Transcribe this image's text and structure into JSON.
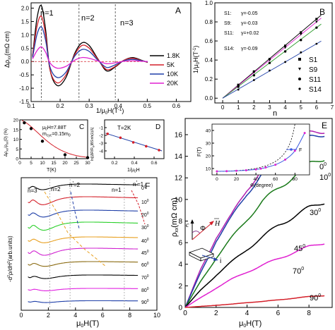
{
  "panels": {
    "A": {
      "letter": "A",
      "ylabel": "Δρ",
      "ylabel_sub": "xx",
      "ylabel_unit": "(mΩ cm)",
      "xlabel": "1/μ",
      "xlabel_sub": "0",
      "xlabel_unit": "H(T",
      "xlabel_sup": "-1",
      "xlabel_end": ")",
      "ranges": {
        "x": [
          0.1,
          0.65
        ],
        "y": [
          -1.5,
          2.2
        ]
      },
      "xticks": [
        "0.1",
        "0.2",
        "0.3",
        "0.4",
        "0.5",
        "0.6"
      ],
      "yticks": [
        "-1.5",
        "-1.0",
        "-0.5",
        "0.0",
        "0.5",
        "1.0",
        "1.5",
        "2.0"
      ],
      "region_labels": [
        "n=1",
        "n=2",
        "n=3"
      ],
      "dividers": [
        0.135,
        0.265,
        0.39
      ],
      "legend": [
        {
          "name": "1.8K",
          "color": "#000000"
        },
        {
          "name": "5K",
          "color": "#d4202a"
        },
        {
          "name": "10K",
          "color": "#1f3fa8"
        },
        {
          "name": "20K",
          "color": "#e020d0"
        }
      ]
    },
    "B": {
      "letter": "B",
      "ylabel": "1/μ",
      "ylabel_sub": "0",
      "ylabel_unit": "H(T",
      "ylabel_sup": "-1",
      "ylabel_end": ")",
      "xlabel": "n",
      "ranges": {
        "x": [
          -0.5,
          7
        ],
        "y": [
          -0.05,
          1.0
        ]
      },
      "xticks": [
        "0",
        "1",
        "2",
        "3",
        "4",
        "5",
        "6",
        "7"
      ],
      "yticks": [
        "0.0",
        "0.2",
        "0.4",
        "0.6",
        "0.8",
        "1.0"
      ],
      "gamma_lines": [
        {
          "sample": "S1:",
          "text": "γ=-0.05",
          "color": "#1f3fa8"
        },
        {
          "sample": "S9:",
          "text": "γ=-0.03",
          "color": "#e020d0"
        },
        {
          "sample": "S11:",
          "text": "γ=+0.02",
          "color": "#2a9a2a"
        },
        {
          "sample": "S14:",
          "text": "γ=-0.09",
          "color": "#1f3fa8"
        }
      ],
      "legend": [
        "S1",
        "S9",
        "S11",
        "S14"
      ]
    },
    "C": {
      "letter": "C",
      "ylabel": "Δρ",
      "ylabel_sub": "xx",
      "ylabel_mid": "/ρ",
      "ylabel_sub2": "xx",
      "ylabel_end": "(0) (%)",
      "xlabel": "T(K)",
      "ranges": {
        "x": [
          0,
          30
        ],
        "y": [
          0,
          20
        ]
      },
      "xticks": [
        "0",
        "5",
        "10",
        "15",
        "20",
        "25",
        "30"
      ],
      "yticks": [
        "0",
        "5",
        "10",
        "15",
        "20"
      ],
      "annotation1": "μ",
      "annotation1_sub": "0",
      "annotation1_end": "H=7.88T",
      "annotation2": "m",
      "annotation2_sub": "cyc",
      "annotation2_end": "=0.15m",
      "annotation2_sub2": "0"
    },
    "D": {
      "letter": "D",
      "annotation": "T=2K",
      "ylabel": "ln[(ΔR/R",
      "ylabel_sub": "0",
      "ylabel_end": ")BSinh(λ)/λ]",
      "xlabel": "1/μ",
      "xlabel_sub": "0",
      "xlabel_end": "H",
      "ranges": {
        "x": [
          0.1,
          0.7
        ],
        "y": [
          -5,
          0
        ]
      },
      "xticks": [
        "0.2",
        "0.4",
        "0.6"
      ],
      "yticks": [
        "-1",
        "-2",
        "-3",
        "-4"
      ]
    },
    "E": {
      "letter": "E",
      "ylabel": "ρ",
      "ylabel_sub": "xx",
      "ylabel_end": "(mΩ cm)",
      "xlabel": "μ",
      "xlabel_sub": "0",
      "xlabel_end": "H(T)",
      "ranges": {
        "x": [
          0,
          9.5
        ],
        "y": [
          0,
          17.5
        ]
      },
      "xticks": [
        "0",
        "2",
        "4",
        "6",
        "8"
      ],
      "yticks": [
        "0",
        "2",
        "4",
        "6",
        "8",
        "10",
        "12",
        "14",
        "16"
      ],
      "angle_labels": [
        {
          "text": "0",
          "sup": "0",
          "color": "#b020b0"
        },
        {
          "text": "10",
          "sup": "0",
          "color": "#1f3fa8"
        },
        {
          "text": "30",
          "sup": "0",
          "color": "#1a7a1a"
        },
        {
          "text": "45",
          "sup": "0",
          "color": "#000000"
        },
        {
          "text": "70",
          "sup": "0",
          "color": "#e020d0"
        },
        {
          "text": "90",
          "sup": "0",
          "color": "#d4202a"
        }
      ],
      "inset": {
        "ylabel": "F(T)",
        "xlabel": "Φ(degree)",
        "xticks": [
          "0",
          "20",
          "40",
          "60",
          "80"
        ],
        "yticks": [
          "10",
          "20",
          "30",
          "40"
        ],
        "legend": "F"
      },
      "schematic": {
        "c": "c",
        "phi": "Φ",
        "h": "H",
        "i": "i"
      }
    },
    "F": {
      "letter": "F",
      "ylabel": "-d",
      "ylabel_sup": "2",
      "ylabel_mid": "ρ/dH",
      "ylabel_sup2": "2",
      "ylabel_end": "(arb.units)",
      "xlabel": "μ",
      "xlabel_sub": "0",
      "xlabel_end": "H(T)",
      "xticks": [
        "0",
        "2",
        "4",
        "6",
        "8",
        "10"
      ],
      "n_labels": [
        "n=3",
        "n=2",
        "n",
        "'",
        "=2",
        "n=1",
        "n",
        "'",
        "=1"
      ],
      "angles": [
        {
          "label": "0",
          "color": "#000000"
        },
        {
          "label": "10",
          "color": "#d4202a"
        },
        {
          "label": "20",
          "color": "#1f3fa8"
        },
        {
          "label": "30",
          "color": "#2ad02a"
        },
        {
          "label": "40",
          "color": "#e8a020"
        },
        {
          "label": "45",
          "color": "#d020d0"
        },
        {
          "label": "60",
          "color": "#8a6a10"
        },
        {
          "label": "70",
          "color": "#000000"
        },
        {
          "label": "80",
          "color": "#e020e0"
        },
        {
          "label": "90",
          "color": "#1f3fa8"
        }
      ]
    }
  },
  "chart_data": [
    {
      "type": "line",
      "panel": "A",
      "xlabel": "1/μ0H(T-1)",
      "ylabel": "Δρxx(mΩ cm)",
      "xlim": [
        0.1,
        0.65
      ],
      "ylim": [
        -1.5,
        2.2
      ],
      "series": [
        {
          "name": "1.8K",
          "x": [
            0.105,
            0.12,
            0.135,
            0.15,
            0.165,
            0.19,
            0.22,
            0.25,
            0.275,
            0.3,
            0.33,
            0.36,
            0.39,
            0.42,
            0.45,
            0.48,
            0.51,
            0.55,
            0.6,
            0.64
          ],
          "y": [
            0.2,
            1.6,
            2.1,
            1.2,
            -0.3,
            -0.9,
            -0.6,
            0.3,
            0.7,
            0.6,
            0.1,
            -0.35,
            -0.2,
            0.05,
            0.15,
            0.05,
            -0.05,
            0.0,
            0.0,
            0.0
          ]
        },
        {
          "name": "5K",
          "x": [
            0.105,
            0.12,
            0.135,
            0.15,
            0.165,
            0.19,
            0.22,
            0.25,
            0.275,
            0.3,
            0.33,
            0.36,
            0.39,
            0.42,
            0.45,
            0.48,
            0.51,
            0.55,
            0.6,
            0.64
          ],
          "y": [
            0.2,
            1.3,
            1.7,
            1.0,
            -0.3,
            -0.8,
            -0.5,
            0.25,
            0.6,
            0.5,
            0.08,
            -0.3,
            -0.18,
            0.05,
            0.12,
            0.04,
            -0.04,
            0.0,
            0.0,
            0.0
          ]
        },
        {
          "name": "10K",
          "x": [
            0.105,
            0.12,
            0.135,
            0.15,
            0.165,
            0.19,
            0.22,
            0.25,
            0.275,
            0.3,
            0.33,
            0.36,
            0.39,
            0.42,
            0.45,
            0.48,
            0.51,
            0.55,
            0.6,
            0.64
          ],
          "y": [
            0.15,
            1.0,
            1.3,
            0.8,
            -0.2,
            -0.6,
            -0.4,
            0.2,
            0.45,
            0.38,
            0.05,
            -0.22,
            -0.12,
            0.03,
            0.08,
            0.03,
            -0.02,
            0.0,
            0.0,
            0.0
          ]
        },
        {
          "name": "20K",
          "x": [
            0.105,
            0.12,
            0.135,
            0.15,
            0.165,
            0.19,
            0.22,
            0.25,
            0.275,
            0.3,
            0.33,
            0.36,
            0.39,
            0.42,
            0.45,
            0.48,
            0.51,
            0.55,
            0.6,
            0.64
          ],
          "y": [
            0.1,
            0.4,
            0.55,
            0.35,
            -0.05,
            -0.25,
            -0.18,
            0.05,
            0.15,
            0.12,
            0.02,
            -0.08,
            -0.05,
            0.01,
            0.03,
            0.01,
            0.0,
            0.0,
            0.0,
            0.0
          ]
        }
      ]
    },
    {
      "type": "scatter",
      "panel": "B",
      "xlabel": "n",
      "ylabel": "1/μ0H(T-1)",
      "xlim": [
        -0.5,
        7
      ],
      "ylim": [
        -0.05,
        1.0
      ],
      "series": [
        {
          "name": "S1",
          "x": [
            1,
            2,
            3,
            4,
            5,
            6
          ],
          "y": [
            0.14,
            0.28,
            0.41,
            0.55,
            0.69,
            0.83
          ]
        },
        {
          "name": "S9",
          "x": [
            1,
            2,
            3,
            4,
            5,
            6
          ],
          "y": [
            0.13,
            0.27,
            0.4,
            0.53,
            0.67,
            0.8
          ]
        },
        {
          "name": "S11",
          "x": [
            1,
            2,
            3,
            4,
            5,
            6
          ],
          "y": [
            0.12,
            0.24,
            0.37,
            0.49,
            0.61,
            0.74
          ]
        },
        {
          "name": "S14",
          "x": [
            1,
            2,
            3,
            4,
            5,
            6
          ],
          "y": [
            0.09,
            0.19,
            0.29,
            0.38,
            0.48,
            0.57
          ]
        }
      ]
    },
    {
      "type": "scatter",
      "panel": "C",
      "xlabel": "T(K)",
      "ylabel": "Δρxx/ρxx(0) (%)",
      "xlim": [
        0,
        30
      ],
      "ylim": [
        0,
        20
      ],
      "x": [
        2,
        5,
        10,
        20,
        30
      ],
      "y": [
        18.5,
        15.5,
        9,
        2,
        0.5
      ]
    },
    {
      "type": "scatter",
      "panel": "D",
      "xlabel": "1/μ0H",
      "ylabel": "ln[(ΔR/R0)BSinh(λ)/λ]",
      "x": [
        0.13,
        0.26,
        0.39,
        0.52,
        0.65
      ],
      "y": [
        -1.8,
        -2.3,
        -2.9,
        -3.4,
        -3.9
      ]
    },
    {
      "type": "line",
      "panel": "E",
      "xlabel": "μ0H(T)",
      "ylabel": "ρxx(mΩ cm)",
      "xlim": [
        0,
        9.5
      ],
      "ylim": [
        0,
        17.5
      ],
      "series": [
        {
          "name": "0",
          "x": [
            0,
            1,
            2,
            3,
            4,
            5,
            6,
            7,
            8,
            9
          ],
          "y": [
            0,
            3.5,
            6.5,
            8.5,
            11,
            12.8,
            14.2,
            15.2,
            16,
            16.5
          ]
        },
        {
          "name": "10",
          "x": [
            0,
            1,
            2,
            3,
            4,
            5,
            6,
            7,
            8,
            9
          ],
          "y": [
            0,
            3.2,
            6.2,
            8.3,
            10.6,
            12.4,
            13.8,
            14.9,
            15.6,
            16.2
          ]
        },
        {
          "name": "30",
          "x": [
            0,
            1,
            2,
            3,
            4,
            5,
            6,
            7,
            8,
            9
          ],
          "y": [
            0,
            2.4,
            4.6,
            6.4,
            8.2,
            9.8,
            11,
            12.2,
            13.2,
            13.9
          ]
        },
        {
          "name": "45",
          "x": [
            0,
            1,
            2,
            3,
            4,
            5,
            6,
            7,
            8,
            9
          ],
          "y": [
            0,
            1.6,
            3.0,
            4.2,
            5.4,
            6.5,
            7.6,
            8.4,
            9.2,
            9.8
          ]
        },
        {
          "name": "70",
          "x": [
            0,
            1,
            2,
            3,
            4,
            5,
            6,
            7,
            8,
            9
          ],
          "y": [
            0,
            0.9,
            1.8,
            2.6,
            3.3,
            3.9,
            4.5,
            5.1,
            5.6,
            6.0
          ]
        },
        {
          "name": "90",
          "x": [
            0,
            1,
            2,
            3,
            4,
            5,
            6,
            7,
            8,
            9
          ],
          "y": [
            0,
            0.1,
            0.2,
            0.3,
            0.45,
            0.55,
            0.7,
            0.85,
            1.0,
            1.1
          ]
        }
      ]
    },
    {
      "type": "scatter",
      "panel": "E-inset",
      "xlabel": "Φ(degree)",
      "ylabel": "F(T)",
      "series": [
        {
          "name": "F",
          "x": [
            0,
            10,
            20,
            30,
            40,
            45,
            50,
            60,
            70,
            80,
            90
          ],
          "y": [
            7.8,
            7.9,
            8.2,
            8.6,
            9.3,
            9.9,
            10.8,
            13,
            17,
            24,
            38
          ]
        }
      ]
    },
    {
      "type": "line",
      "panel": "F",
      "xlabel": "μ0H(T)",
      "ylabel": "-d2ρ/dH2(arb.units)",
      "series_names": [
        "0",
        "10",
        "20",
        "30",
        "40",
        "45",
        "60",
        "70",
        "80",
        "90"
      ]
    }
  ]
}
